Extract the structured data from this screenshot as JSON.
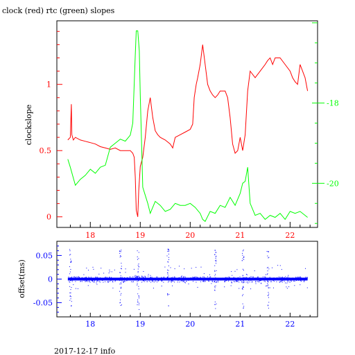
{
  "title": "clock (red) rtc (green) slopes",
  "footer": "2017-12-17 info",
  "colors": {
    "clock": "#ff0000",
    "rtc": "#00ff00",
    "offset": "#0000ff",
    "frame": "#000000"
  },
  "chart_data": [
    {
      "type": "line",
      "title": "clock (red) rtc (green) slopes",
      "xlabel": "",
      "ylabel": "clockslope",
      "xlim": [
        17.33,
        22.55
      ],
      "ylim": [
        -0.08,
        1.48
      ],
      "xticks": [
        18,
        19,
        20,
        21,
        22
      ],
      "xtick_labels": [
        "18",
        "19",
        "20",
        "21",
        "22"
      ],
      "yticks": [
        0,
        0.5,
        1
      ],
      "ytick_labels": [
        "0",
        "0.5",
        "1"
      ],
      "y2lim": [
        -21.1,
        -15.95
      ],
      "y2ticks": [
        -20,
        -18
      ],
      "y2tick_labels": [
        "-20",
        "-18"
      ],
      "series": [
        {
          "color": "#ff0000",
          "axis": "left",
          "x": [
            17.55,
            17.6,
            17.62,
            17.63,
            17.66,
            17.7,
            17.8,
            17.9,
            18.0,
            18.1,
            18.2,
            18.3,
            18.4,
            18.5,
            18.6,
            18.7,
            18.8,
            18.85,
            18.88,
            18.9,
            18.92,
            18.95,
            18.97,
            19.0,
            19.05,
            19.1,
            19.15,
            19.2,
            19.25,
            19.3,
            19.35,
            19.4,
            19.5,
            19.6,
            19.65,
            19.7,
            19.8,
            19.9,
            20.0,
            20.05,
            20.08,
            20.12,
            20.15,
            20.2,
            20.25,
            20.3,
            20.35,
            20.4,
            20.45,
            20.5,
            20.55,
            20.6,
            20.7,
            20.75,
            20.8,
            20.85,
            20.9,
            20.95,
            21.0,
            21.05,
            21.1,
            21.15,
            21.2,
            21.3,
            21.4,
            21.5,
            21.55,
            21.6,
            21.65,
            21.7,
            21.8,
            21.9,
            22.0,
            22.05,
            22.1,
            22.15,
            22.2,
            22.25,
            22.3,
            22.35
          ],
          "y": [
            0.58,
            0.6,
            0.85,
            0.62,
            0.58,
            0.6,
            0.58,
            0.57,
            0.56,
            0.55,
            0.53,
            0.52,
            0.51,
            0.52,
            0.5,
            0.5,
            0.5,
            0.48,
            0.45,
            0.3,
            0.05,
            0.0,
            0.2,
            0.38,
            0.45,
            0.6,
            0.8,
            0.9,
            0.75,
            0.65,
            0.62,
            0.6,
            0.58,
            0.55,
            0.52,
            0.6,
            0.62,
            0.64,
            0.66,
            0.7,
            0.9,
            1.0,
            1.05,
            1.15,
            1.3,
            1.15,
            1.0,
            0.95,
            0.92,
            0.9,
            0.92,
            0.95,
            0.95,
            0.9,
            0.75,
            0.55,
            0.48,
            0.5,
            0.6,
            0.5,
            0.62,
            0.95,
            1.1,
            1.05,
            1.1,
            1.15,
            1.18,
            1.2,
            1.15,
            1.2,
            1.2,
            1.15,
            1.1,
            1.05,
            1.02,
            1.0,
            1.15,
            1.1,
            1.05,
            0.95
          ]
        },
        {
          "color": "#00ff00",
          "axis": "right",
          "x": [
            17.55,
            17.6,
            17.7,
            17.8,
            17.9,
            18.0,
            18.1,
            18.2,
            18.3,
            18.4,
            18.5,
            18.6,
            18.7,
            18.8,
            18.85,
            18.9,
            18.92,
            18.95,
            18.98,
            19.0,
            19.03,
            19.05,
            19.1,
            19.15,
            19.2,
            19.3,
            19.4,
            19.5,
            19.6,
            19.7,
            19.8,
            19.9,
            20.0,
            20.1,
            20.2,
            20.25,
            20.3,
            20.4,
            20.5,
            20.6,
            20.7,
            20.8,
            20.9,
            21.0,
            21.05,
            21.1,
            21.15,
            21.2,
            21.3,
            21.4,
            21.5,
            21.6,
            21.7,
            21.8,
            21.9,
            22.0,
            22.1,
            22.2,
            22.3,
            22.35
          ],
          "y": [
            -19.4,
            -19.6,
            -20.05,
            -19.9,
            -19.8,
            -19.65,
            -19.75,
            -19.6,
            -19.55,
            -19.1,
            -19.0,
            -18.9,
            -18.95,
            -18.8,
            -18.5,
            -16.8,
            -16.2,
            -16.2,
            -16.7,
            -17.8,
            -19.2,
            -20.1,
            -20.3,
            -20.5,
            -20.75,
            -20.45,
            -20.55,
            -20.7,
            -20.65,
            -20.5,
            -20.55,
            -20.55,
            -20.5,
            -20.6,
            -20.75,
            -20.9,
            -20.95,
            -20.7,
            -20.75,
            -20.55,
            -20.6,
            -20.35,
            -20.55,
            -20.25,
            -20.0,
            -19.95,
            -19.6,
            -20.5,
            -20.8,
            -20.75,
            -20.9,
            -20.8,
            -20.85,
            -20.75,
            -20.9,
            -20.7,
            -20.75,
            -20.7,
            -20.8,
            -20.85
          ]
        }
      ]
    },
    {
      "type": "scatter",
      "xlabel": "",
      "ylabel": "offset(ms)",
      "xlim": [
        17.33,
        22.55
      ],
      "ylim": [
        -0.08,
        0.08
      ],
      "xticks": [
        18,
        19,
        20,
        21,
        22
      ],
      "xtick_labels": [
        "18",
        "19",
        "20",
        "21",
        "22"
      ],
      "yticks": [
        0.05,
        0,
        -0.05
      ],
      "ytick_labels": [
        "0.05",
        "0",
        "-0.05"
      ],
      "series": [
        {
          "color": "#0000ff",
          "x_range": [
            17.55,
            22.35
          ],
          "baseline": 0,
          "spread": 0.006,
          "spike_x": [
            17.6,
            18.6,
            18.95,
            19.55,
            20.5,
            21.05,
            21.55
          ]
        }
      ]
    }
  ]
}
